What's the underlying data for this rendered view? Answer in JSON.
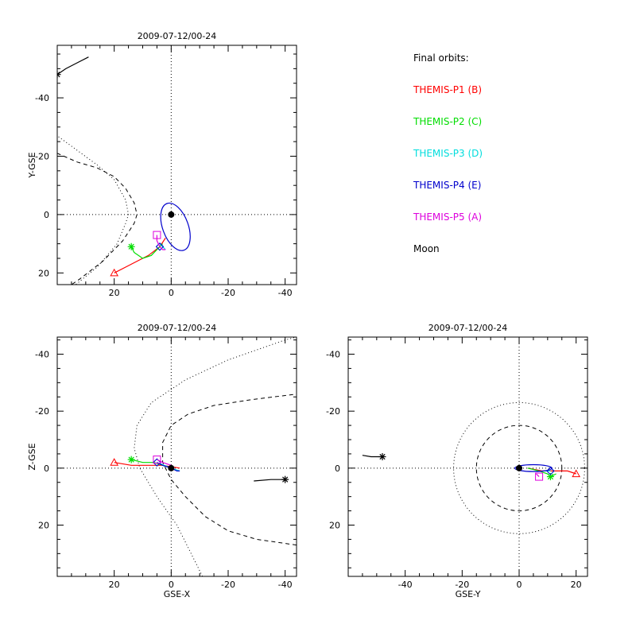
{
  "chart_data": [
    {
      "type": "scatter",
      "panel": "top-left",
      "title": "2009-07-12/00-24",
      "xlabel": "",
      "ylabel": "Y-GSE",
      "xlim": [
        40,
        -44
      ],
      "ylim": [
        24,
        -58
      ],
      "x_ticks": [
        "20",
        "0",
        "-20",
        "-40"
      ],
      "y_ticks": [
        "-40",
        "-20",
        "0",
        "20"
      ],
      "grid": "dotted axes through origin",
      "magnetopause": [
        [
          41,
          28
        ],
        [
          32,
          22
        ],
        [
          24,
          16
        ],
        [
          17,
          9
        ],
        [
          13,
          3
        ],
        [
          12,
          0
        ],
        [
          13,
          -4
        ],
        [
          16,
          -9
        ],
        [
          20,
          -13
        ],
        [
          26,
          -16
        ],
        [
          33,
          -18
        ],
        [
          40,
          -21
        ],
        [
          44,
          -23
        ]
      ],
      "bow_shock": [
        [
          46,
          33
        ],
        [
          36,
          26
        ],
        [
          26,
          18
        ],
        [
          19,
          10
        ],
        [
          16,
          3
        ],
        [
          15,
          0
        ],
        [
          16,
          -5
        ],
        [
          20,
          -12
        ],
        [
          26,
          -17
        ],
        [
          33,
          -22
        ],
        [
          40,
          -27
        ],
        [
          45,
          -30
        ]
      ],
      "orbits": [
        {
          "name": "THEMIS-P1 (B)",
          "points": [
            [
              20,
              20
            ],
            [
              16,
              18
            ],
            [
              12,
              16
            ],
            [
              8,
              14
            ],
            [
              4,
              11
            ],
            [
              2,
              8
            ]
          ],
          "marker": "triangle",
          "marker_at": [
            20,
            20
          ]
        },
        {
          "name": "THEMIS-P2 (C)",
          "points": [
            [
              14,
              11
            ],
            [
              13,
              13
            ],
            [
              10,
              15
            ],
            [
              7,
              14
            ],
            [
              5,
              12
            ],
            [
              3,
              10
            ]
          ],
          "marker": "asterisk",
          "marker_at": [
            14,
            11
          ]
        },
        {
          "name": "THEMIS-P3 (D)",
          "points": [
            [
              4,
              10
            ],
            [
              3,
              11
            ],
            [
              2,
              12
            ]
          ],
          "marker": "diamond",
          "marker_at": [
            4,
            11
          ]
        },
        {
          "name": "THEMIS-P4 (E)",
          "ellipse": {
            "cx": -1.5,
            "cy": 4.2,
            "rx": 4.5,
            "ry": 8.5,
            "rot_deg": -20
          },
          "marker": "diamond",
          "marker_at": [
            4,
            11
          ]
        },
        {
          "name": "THEMIS-P5 (A)",
          "points": [
            [
              5,
              7
            ],
            [
              5,
              9
            ],
            [
              4,
              11
            ],
            [
              3,
              12
            ],
            [
              2,
              12
            ]
          ],
          "marker": "square",
          "marker_at": [
            5,
            7
          ]
        },
        {
          "name": "Moon",
          "points": [
            [
              29,
              -54
            ],
            [
              33,
              -52
            ],
            [
              37,
              -50
            ],
            [
              40,
              -48
            ]
          ],
          "marker": "asterisk",
          "marker_at": [
            40,
            -48
          ]
        }
      ]
    },
    {
      "type": "scatter",
      "panel": "bottom-left",
      "title": "2009-07-12/00-24",
      "xlabel": "GSE-X",
      "ylabel": "Z-GSE",
      "xlim": [
        40,
        -44
      ],
      "ylim": [
        38,
        -46
      ],
      "x_ticks": [
        "20",
        "0",
        "-20",
        "-40"
      ],
      "y_ticks": [
        "20",
        "0",
        "-20",
        "-40"
      ],
      "grid": "dotted axes through origin",
      "magnetopause": [
        [
          -44,
          27
        ],
        [
          -30,
          25
        ],
        [
          -20,
          22
        ],
        [
          -12,
          17
        ],
        [
          -5,
          10
        ],
        [
          0,
          4
        ],
        [
          3,
          -2
        ],
        [
          3,
          -9
        ],
        [
          0,
          -15
        ],
        [
          -6,
          -19
        ],
        [
          -15,
          -22
        ],
        [
          -28,
          -24
        ],
        [
          -44,
          -26
        ]
      ],
      "bow_shock": [
        [
          -11,
          38
        ],
        [
          -7,
          30
        ],
        [
          -2,
          20
        ],
        [
          5,
          10
        ],
        [
          11,
          0
        ],
        [
          13,
          -7
        ],
        [
          12,
          -15
        ],
        [
          7,
          -23
        ],
        [
          -5,
          -31
        ],
        [
          -20,
          -38
        ],
        [
          -40,
          -45
        ],
        [
          -44,
          -46
        ]
      ],
      "orbits": [
        {
          "name": "THEMIS-P1 (B)",
          "points": [
            [
              20,
              -2
            ],
            [
              14,
              -1
            ],
            [
              8,
              -1
            ],
            [
              3,
              -1
            ],
            [
              -3,
              0
            ]
          ],
          "marker": "triangle",
          "marker_at": [
            20,
            -2
          ]
        },
        {
          "name": "THEMIS-P2 (C)",
          "points": [
            [
              14,
              -3
            ],
            [
              10,
              -2
            ],
            [
              6,
              -2
            ],
            [
              3,
              -1
            ],
            [
              0,
              0
            ]
          ],
          "marker": "asterisk",
          "marker_at": [
            14,
            -3
          ]
        },
        {
          "name": "THEMIS-P3 (D)",
          "points": [
            [
              5,
              -2
            ],
            [
              0,
              0
            ],
            [
              -3,
              1
            ]
          ],
          "marker": "diamond",
          "marker_at": [
            5,
            -2
          ]
        },
        {
          "name": "THEMIS-P4 (E)",
          "points": [
            [
              5,
              -2
            ],
            [
              3,
              -1
            ],
            [
              0,
              0
            ],
            [
              -2,
              1
            ],
            [
              -3,
              1
            ]
          ],
          "marker": "diamond",
          "marker_at": [
            5,
            -2
          ]
        },
        {
          "name": "THEMIS-P5 (A)",
          "points": [
            [
              5,
              -3
            ],
            [
              3,
              -2
            ],
            [
              0,
              -1
            ]
          ],
          "marker": "square",
          "marker_at": [
            5,
            -3
          ]
        },
        {
          "name": "Moon",
          "points": [
            [
              -29,
              4.5
            ],
            [
              -35,
              4
            ],
            [
              -40,
              4
            ]
          ],
          "marker": "asterisk",
          "marker_at": [
            -40,
            4
          ]
        }
      ]
    },
    {
      "type": "scatter",
      "panel": "bottom-right",
      "title": "2009-07-12/00-24",
      "xlabel": "GSE-Y",
      "ylabel": "",
      "xlim": [
        -60,
        24
      ],
      "ylim": [
        38,
        -46
      ],
      "x_ticks": [
        "-40",
        "-20",
        "0",
        "20"
      ],
      "y_ticks": [
        "20",
        "0",
        "-20",
        "-40"
      ],
      "grid": "dotted axes through origin",
      "magnetopause_radius": 15,
      "bow_shock_radius": 23,
      "orbits": [
        {
          "name": "THEMIS-P1 (B)",
          "points": [
            [
              3,
              0
            ],
            [
              8,
              1
            ],
            [
              13,
              1
            ],
            [
              17,
              1
            ],
            [
              20,
              2
            ]
          ],
          "marker": "triangle",
          "marker_at": [
            20,
            2
          ]
        },
        {
          "name": "THEMIS-P2 (C)",
          "points": [
            [
              3,
              0
            ],
            [
              7,
              1
            ],
            [
              10,
              2
            ],
            [
              11,
              3
            ],
            [
              13,
              2
            ]
          ],
          "marker": "asterisk",
          "marker_at": [
            11,
            3
          ]
        },
        {
          "name": "THEMIS-P3 (D)",
          "points": [
            [
              9,
              1
            ],
            [
              10,
              1
            ],
            [
              11,
              1
            ]
          ],
          "marker": "diamond",
          "marker_at": [
            11,
            1
          ]
        },
        {
          "name": "THEMIS-P4 (E)",
          "ellipse": {
            "cx": 5,
            "cy": 0,
            "rx": 6.5,
            "ry": 1.2,
            "rot_deg": 0
          },
          "marker": "diamond",
          "marker_at": [
            11,
            1
          ]
        },
        {
          "name": "THEMIS-P5 (A)",
          "points": [
            [
              7,
              3
            ],
            [
              6,
              2
            ]
          ],
          "marker": "square",
          "marker_at": [
            7,
            3
          ]
        },
        {
          "name": "Moon",
          "points": [
            [
              -55,
              -4.5
            ],
            [
              -52,
              -4
            ],
            [
              -48,
              -4
            ]
          ],
          "marker": "asterisk",
          "marker_at": [
            -48,
            -4
          ]
        }
      ]
    }
  ],
  "legend": {
    "title": "Final orbits:",
    "items": [
      {
        "label": "THEMIS-P1 (B)",
        "color": "#ff0000"
      },
      {
        "label": "THEMIS-P2 (C)",
        "color": "#00dd00"
      },
      {
        "label": "THEMIS-P3 (D)",
        "color": "#00dddd"
      },
      {
        "label": "THEMIS-P4 (E)",
        "color": "#0000cc"
      },
      {
        "label": "THEMIS-P5 (A)",
        "color": "#dd00dd"
      },
      {
        "label": "Moon",
        "color": "#000000"
      }
    ]
  },
  "colors": {
    "THEMIS-P1 (B)": "#ff0000",
    "THEMIS-P2 (C)": "#00dd00",
    "THEMIS-P3 (D)": "#00dddd",
    "THEMIS-P4 (E)": "#0000cc",
    "THEMIS-P5 (A)": "#dd00dd",
    "Moon": "#000000"
  }
}
